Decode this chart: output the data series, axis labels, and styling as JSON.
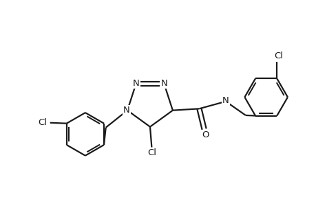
{
  "bg_color": "#ffffff",
  "bond_color": "#1a1a1a",
  "bond_width": 1.6,
  "font_size": 9.5,
  "font_color": "#1a1a1a",
  "xlim": [
    -4.5,
    5.0
  ],
  "ylim": [
    -2.8,
    3.2
  ]
}
